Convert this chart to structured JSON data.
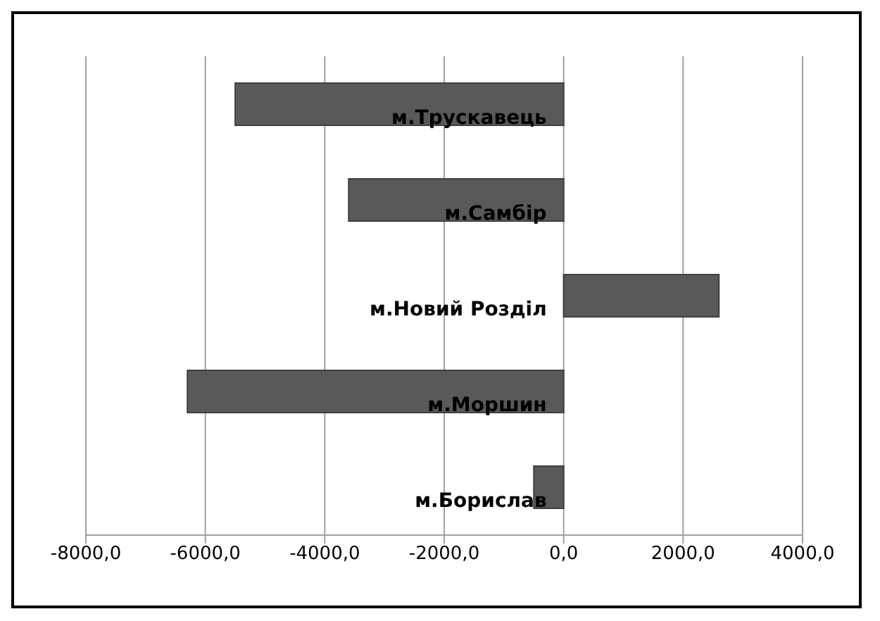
{
  "chart_data": {
    "type": "bar",
    "orientation": "horizontal",
    "categories": [
      "м.Трускавець",
      "м.Самбір",
      "м.Новий Розділ",
      "м.Моршин",
      "м.Борислав"
    ],
    "values": [
      -5500,
      -3600,
      2600,
      -6300,
      -500
    ],
    "color": "#595959",
    "xlim": [
      -8000,
      4000
    ],
    "xticks": [
      {
        "value": -8000,
        "label": "-8000,0"
      },
      {
        "value": -6000,
        "label": "-6000,0"
      },
      {
        "value": -4000,
        "label": "-4000,0"
      },
      {
        "value": -2000,
        "label": "-2000,0"
      },
      {
        "value": 0,
        "label": "0,0"
      },
      {
        "value": 2000,
        "label": "2000,0"
      },
      {
        "value": 4000,
        "label": "4000,0"
      }
    ],
    "grid": "x"
  }
}
